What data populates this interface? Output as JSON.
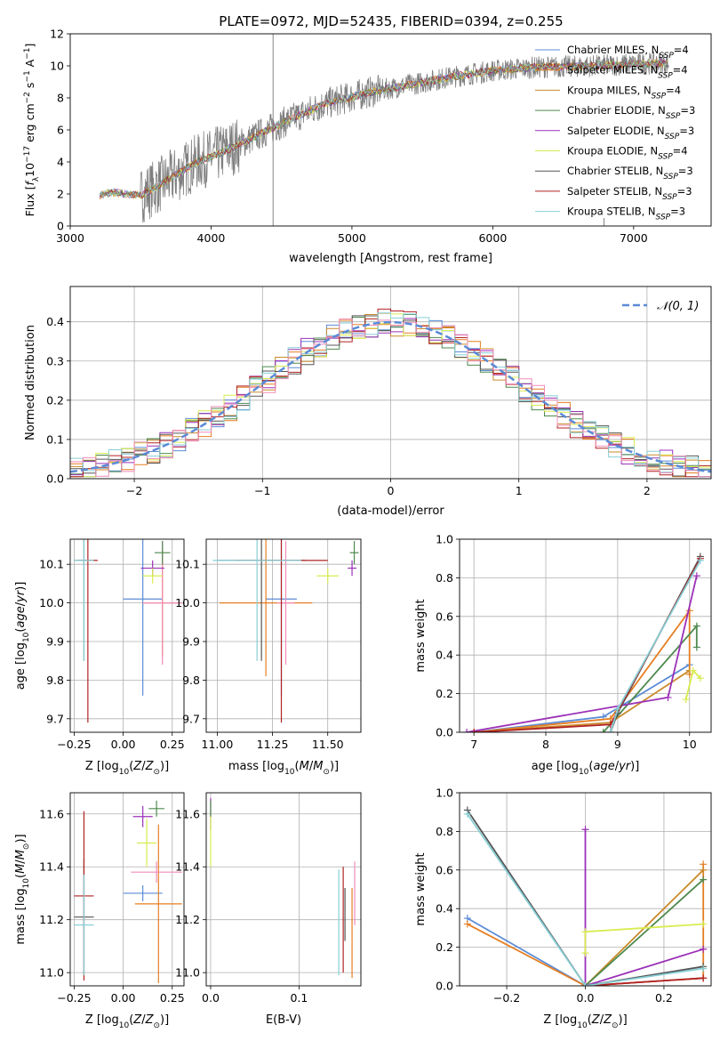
{
  "figure": {
    "title": "PLATE=0972, MJD=52435, FIBERID=0394, z=0.255"
  },
  "colors": {
    "chabrier_miles": "#5b8bd6",
    "salpeter_miles": "#e67e22",
    "kroupa_miles": "#c98a2b",
    "chabrier_elodie": "#4e8a4e",
    "salpeter_elodie": "#9b30b8",
    "kroupa_elodie": "#d8ec50",
    "chabrier_stelib": "#555555",
    "salpeter_stelib": "#b22222",
    "kroupa_stelib": "#88cfd6",
    "pink": "#f08cb8",
    "data": "#7f7f7f",
    "normal": "#5b8bd6"
  },
  "chart_data": [
    {
      "id": "spectrum",
      "type": "line",
      "title": "PLATE=0972, MJD=52435, FIBERID=0394, z=0.255",
      "xlabel": "wavelength [Angstrom, rest frame]",
      "ylabel": "Flux [f_λ10^-17 erg cm^-2 s^-1 A^-1]",
      "xlim": [
        3000,
        7550
      ],
      "ylim": [
        0,
        12
      ],
      "xticks": [
        3000,
        4000,
        5000,
        6000,
        7000
      ],
      "yticks": [
        0,
        2,
        4,
        6,
        8,
        10,
        12
      ],
      "legend_position": "top-right",
      "legend": [
        {
          "label": "Chabrier MILES, N",
          "sub": "SSP",
          "tail": "=4",
          "color": "#5b8bd6"
        },
        {
          "label": "Salpeter MILES, N",
          "sub": "SSP",
          "tail": "=4",
          "color": "#e67e22"
        },
        {
          "label": "Kroupa MILES, N",
          "sub": "SSP",
          "tail": "=4",
          "color": "#c98a2b"
        },
        {
          "label": "Chabrier ELODIE, N",
          "sub": "SSP",
          "tail": "=3",
          "color": "#4e8a4e"
        },
        {
          "label": "Salpeter ELODIE, N",
          "sub": "SSP",
          "tail": "=3",
          "color": "#9b30b8"
        },
        {
          "label": "Kroupa ELODIE, N",
          "sub": "SSP",
          "tail": "=4",
          "color": "#d8ec50"
        },
        {
          "label": "Chabrier STELIB, N",
          "sub": "SSP",
          "tail": "=3",
          "color": "#555555"
        },
        {
          "label": "Salpeter STELIB, N",
          "sub": "SSP",
          "tail": "=3",
          "color": "#b22222"
        },
        {
          "label": "Kroupa STELIB, N",
          "sub": "SSP",
          "tail": "=3",
          "color": "#88cfd6"
        }
      ],
      "continuum": [
        [
          3210,
          1.9
        ],
        [
          3300,
          2.1
        ],
        [
          3500,
          1.9
        ],
        [
          3700,
          2.9
        ],
        [
          3900,
          4.0
        ],
        [
          4000,
          4.3
        ],
        [
          4200,
          5.1
        ],
        [
          4500,
          6.4
        ],
        [
          4800,
          7.6
        ],
        [
          5100,
          8.3
        ],
        [
          5400,
          8.8
        ],
        [
          5700,
          9.3
        ],
        [
          6000,
          9.7
        ],
        [
          6300,
          9.9
        ],
        [
          6700,
          10.0
        ],
        [
          7000,
          10.1
        ],
        [
          7200,
          10.2
        ],
        [
          7250,
          10.1
        ]
      ],
      "spikes": [
        [
          4440,
          12.0
        ],
        [
          6790,
          0.5
        ]
      ]
    },
    {
      "id": "residuals",
      "type": "line",
      "xlabel": "(data-model)/error",
      "ylabel": "Normed distribution",
      "xlim": [
        -2.5,
        2.5
      ],
      "ylim": [
        0,
        0.49
      ],
      "xticks": [
        -2,
        -1,
        0,
        1,
        2
      ],
      "yticks": [
        0.0,
        0.1,
        0.2,
        0.3,
        0.4
      ],
      "legend_position": "top-right",
      "legend_label": "𝒩(0, 1)",
      "bin_width": 0.1
    },
    {
      "id": "age-vs-Z",
      "type": "scatter",
      "xlabel": "Z [log10(Z/Z⊙)]",
      "ylabel": "age  [log10(age/yr)]",
      "xlim": [
        -0.27,
        0.31
      ],
      "ylim": [
        9.665,
        10.165
      ],
      "xticks": [
        -0.25,
        0.0,
        0.25
      ],
      "yticks": [
        9.7,
        9.8,
        9.9,
        10.0,
        10.1
      ],
      "points": [
        {
          "x": 0.1,
          "y": 10.01,
          "xerr": 0.1,
          "yerr": 0.25,
          "color": "#5b8bd6"
        },
        {
          "x": 0.2,
          "y": 10.0,
          "xerr": 0.1,
          "yerr": 0.14,
          "color": "#e67e22"
        },
        {
          "x": 0.2,
          "y": 10.0,
          "xerr": 0.1,
          "yerr": 0.16,
          "color": "#f08cb8"
        },
        {
          "x": 0.2,
          "y": 10.13,
          "xerr": 0.04,
          "yerr": 0.03,
          "color": "#4e8a4e"
        },
        {
          "x": 0.15,
          "y": 10.09,
          "xerr": 0.06,
          "yerr": 0.02,
          "color": "#9b30b8"
        },
        {
          "x": 0.15,
          "y": 10.07,
          "xerr": 0.05,
          "yerr": 0.02,
          "color": "#d8ec50"
        },
        {
          "x": -0.2,
          "y": 10.11,
          "xerr": 0.05,
          "yerr": 0.26,
          "color": "#555555"
        },
        {
          "x": -0.18,
          "y": 10.11,
          "xerr": 0.05,
          "yerr": 0.42,
          "color": "#b22222"
        },
        {
          "x": -0.2,
          "y": 10.11,
          "xerr": 0.05,
          "yerr": 0.26,
          "color": "#88cfd6"
        }
      ]
    },
    {
      "id": "age-vs-mass",
      "type": "scatter",
      "xlabel": "mass [log10(M/M⊙)]",
      "ylabel": "",
      "xlim": [
        10.95,
        11.65
      ],
      "ylim": [
        9.665,
        10.165
      ],
      "xticks": [
        11.0,
        11.25,
        11.5
      ],
      "yticks": [
        9.7,
        9.8,
        9.9,
        10.0,
        10.1
      ],
      "points": [
        {
          "x": 11.29,
          "y": 10.01,
          "xerr": 0.07,
          "yerr": 0.25,
          "color": "#5b8bd6"
        },
        {
          "x": 11.22,
          "y": 10.0,
          "xerr": 0.21,
          "yerr": 0.19,
          "color": "#e67e22"
        },
        {
          "x": 11.31,
          "y": 10.0,
          "xerr": 0.04,
          "yerr": 0.16,
          "color": "#f08cb8"
        },
        {
          "x": 11.62,
          "y": 10.13,
          "xerr": 0.02,
          "yerr": 0.03,
          "color": "#4e8a4e"
        },
        {
          "x": 11.61,
          "y": 10.09,
          "xerr": 0.02,
          "yerr": 0.02,
          "color": "#9b30b8"
        },
        {
          "x": 11.5,
          "y": 10.07,
          "xerr": 0.05,
          "yerr": 0.02,
          "color": "#d8ec50"
        },
        {
          "x": 11.2,
          "y": 10.11,
          "xerr": 0.2,
          "yerr": 0.26,
          "color": "#555555"
        },
        {
          "x": 11.29,
          "y": 10.11,
          "xerr": 0.21,
          "yerr": 0.42,
          "color": "#b22222"
        },
        {
          "x": 11.18,
          "y": 10.11,
          "xerr": 0.2,
          "yerr": 0.26,
          "color": "#88cfd6"
        }
      ]
    },
    {
      "id": "weight-vs-age",
      "type": "line",
      "xlabel": "age  [log10(age/yr)]",
      "ylabel": "mass weight",
      "xlim": [
        6.8,
        10.3
      ],
      "ylim": [
        0,
        1
      ],
      "xticks": [
        7,
        8,
        9,
        10
      ],
      "yticks": [
        0.0,
        0.2,
        0.4,
        0.6,
        0.8,
        1.0
      ],
      "series": [
        {
          "color": "#5b8bd6",
          "points": [
            [
              7.0,
              0.0
            ],
            [
              8.8,
              0.08
            ],
            [
              10.0,
              0.35
            ]
          ]
        },
        {
          "color": "#e67e22",
          "points": [
            [
              7.0,
              0.0
            ],
            [
              8.9,
              0.07
            ],
            [
              10.0,
              0.63
            ],
            [
              10.0,
              0.3
            ]
          ]
        },
        {
          "color": "#c98a2b",
          "points": [
            [
              7.0,
              0.0
            ],
            [
              8.9,
              0.05
            ],
            [
              10.0,
              0.32
            ]
          ]
        },
        {
          "color": "#4e8a4e",
          "points": [
            [
              8.8,
              0.0
            ],
            [
              10.1,
              0.55
            ],
            [
              10.1,
              0.44
            ]
          ]
        },
        {
          "color": "#9b30b8",
          "points": [
            [
              6.9,
              0.0
            ],
            [
              9.7,
              0.18
            ],
            [
              10.1,
              0.81
            ]
          ]
        },
        {
          "color": "#d8ec50",
          "points": [
            [
              9.95,
              0.17
            ],
            [
              10.05,
              0.32
            ],
            [
              10.15,
              0.28
            ]
          ]
        },
        {
          "color": "#555555",
          "points": [
            [
              8.9,
              0.0
            ],
            [
              9.0,
              0.1
            ],
            [
              10.15,
              0.91
            ]
          ]
        },
        {
          "color": "#b22222",
          "points": [
            [
              7.0,
              0.0
            ],
            [
              8.9,
              0.04
            ],
            [
              10.15,
              0.9
            ]
          ]
        },
        {
          "color": "#88cfd6",
          "points": [
            [
              8.9,
              0.0
            ],
            [
              9.0,
              0.12
            ],
            [
              10.15,
              0.89
            ]
          ]
        }
      ]
    },
    {
      "id": "mass-vs-Z",
      "type": "scatter",
      "xlabel": "Z [log10(Z/Z⊙)]",
      "ylabel": "mass [log10(M/M⊙)]",
      "xlim": [
        -0.27,
        0.31
      ],
      "ylim": [
        10.95,
        11.68
      ],
      "xticks": [
        -0.25,
        0.0,
        0.25
      ],
      "yticks": [
        11.0,
        11.2,
        11.4,
        11.6
      ],
      "points": [
        {
          "x": 0.1,
          "y": 11.3,
          "xerr": 0.1,
          "yerr": 0.03,
          "color": "#5b8bd6"
        },
        {
          "x": 0.18,
          "y": 11.26,
          "xerr": 0.12,
          "yerr": 0.3,
          "color": "#e67e22"
        },
        {
          "x": 0.17,
          "y": 11.38,
          "xerr": 0.13,
          "yerr": 0.04,
          "color": "#f08cb8"
        },
        {
          "x": 0.17,
          "y": 11.62,
          "xerr": 0.04,
          "yerr": 0.03,
          "color": "#4e8a4e"
        },
        {
          "x": 0.1,
          "y": 11.59,
          "xerr": 0.05,
          "yerr": 0.04,
          "color": "#9b30b8"
        },
        {
          "x": 0.12,
          "y": 11.49,
          "xerr": 0.05,
          "yerr": 0.09,
          "color": "#d8ec50"
        },
        {
          "x": -0.2,
          "y": 11.21,
          "xerr": 0.05,
          "yerr": 0.22,
          "color": "#555555"
        },
        {
          "x": -0.2,
          "y": 11.29,
          "xerr": 0.05,
          "yerr": 0.32,
          "color": "#b22222"
        },
        {
          "x": -0.2,
          "y": 11.18,
          "xerr": 0.05,
          "yerr": 0.19,
          "color": "#88cfd6"
        }
      ]
    },
    {
      "id": "mass-vs-ebv",
      "type": "scatter",
      "xlabel": "E(B-V)",
      "ylabel": "",
      "xlim": [
        -0.005,
        0.17
      ],
      "ylim": [
        10.95,
        11.68
      ],
      "xticks": [
        0.0,
        0.1
      ],
      "yticks": [
        11.0,
        11.2,
        11.4,
        11.6
      ],
      "points": [
        {
          "x": 0.0,
          "y": 11.6,
          "xerr": 0.0,
          "yerr": 0.06,
          "color": "#9b30b8"
        },
        {
          "x": 0.0,
          "y": 11.5,
          "xerr": 0.0,
          "yerr": 0.1,
          "color": "#d8ec50"
        },
        {
          "x": 0.0,
          "y": 11.62,
          "xerr": 0.0,
          "yerr": 0.03,
          "color": "#4e8a4e"
        },
        {
          "x": 0.15,
          "y": 11.2,
          "xerr": 0.0,
          "yerr": 0.2,
          "color": "#b22222"
        },
        {
          "x": 0.145,
          "y": 11.19,
          "xerr": 0.0,
          "yerr": 0.2,
          "color": "#88cfd6"
        },
        {
          "x": 0.152,
          "y": 11.22,
          "xerr": 0.0,
          "yerr": 0.1,
          "color": "#555555"
        },
        {
          "x": 0.16,
          "y": 11.15,
          "xerr": 0.0,
          "yerr": 0.17,
          "color": "#e67e22"
        },
        {
          "x": 0.163,
          "y": 11.3,
          "xerr": 0.0,
          "yerr": 0.12,
          "color": "#f08cb8"
        }
      ]
    },
    {
      "id": "weight-vs-Z",
      "type": "line",
      "xlabel": "Z [log10(Z/Z⊙)]",
      "ylabel": "mass weight",
      "xlim": [
        -0.32,
        0.32
      ],
      "ylim": [
        0,
        1
      ],
      "xticks": [
        -0.2,
        0.0,
        0.2
      ],
      "yticks": [
        0.0,
        0.2,
        0.4,
        0.6,
        0.8,
        1.0
      ],
      "series": [
        {
          "color": "#5b8bd6",
          "points": [
            [
              -0.3,
              0.35
            ],
            [
              0.0,
              0.0
            ],
            [
              0.3,
              0.04
            ]
          ]
        },
        {
          "color": "#e67e22",
          "points": [
            [
              -0.3,
              0.32
            ],
            [
              0.0,
              0.0
            ],
            [
              0.3,
              0.04
            ],
            [
              0.3,
              0.63
            ]
          ]
        },
        {
          "color": "#c98a2b",
          "points": [
            [
              0.0,
              0.0
            ],
            [
              0.3,
              0.6
            ]
          ]
        },
        {
          "color": "#4e8a4e",
          "points": [
            [
              0.0,
              0.0
            ],
            [
              0.3,
              0.55
            ]
          ]
        },
        {
          "color": "#9b30b8",
          "points": [
            [
              0.0,
              0.81
            ],
            [
              0.0,
              0.0
            ],
            [
              0.3,
              0.19
            ]
          ]
        },
        {
          "color": "#d8ec50",
          "points": [
            [
              0.0,
              0.17
            ],
            [
              0.0,
              0.28
            ],
            [
              0.3,
              0.32
            ]
          ]
        },
        {
          "color": "#555555",
          "points": [
            [
              -0.3,
              0.91
            ],
            [
              0.0,
              0.0
            ],
            [
              0.3,
              0.1
            ]
          ]
        },
        {
          "color": "#b22222",
          "points": [
            [
              0.0,
              0.0
            ],
            [
              0.3,
              0.04
            ]
          ]
        },
        {
          "color": "#88cfd6",
          "points": [
            [
              -0.3,
              0.89
            ],
            [
              0.0,
              0.0
            ],
            [
              0.3,
              0.09
            ]
          ]
        }
      ]
    }
  ]
}
